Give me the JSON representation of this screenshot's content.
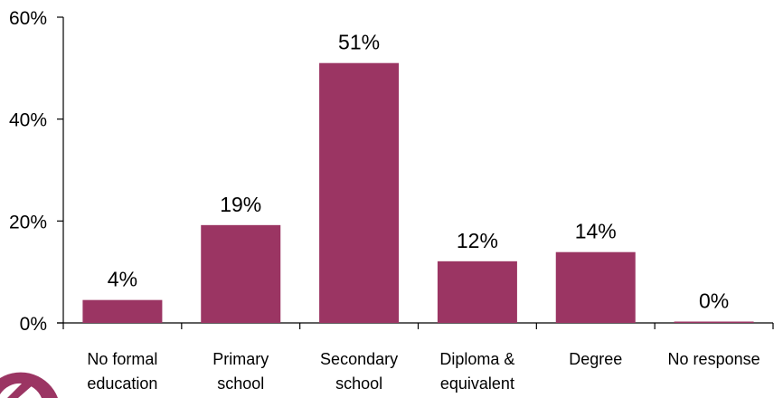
{
  "chart_data": {
    "type": "bar",
    "categories": [
      [
        "No formal",
        "education"
      ],
      [
        "Primary",
        "school"
      ],
      [
        "Secondary",
        "school"
      ],
      [
        "Diploma &",
        "equivalent"
      ],
      [
        "Degree"
      ],
      [
        "No response"
      ]
    ],
    "values": [
      4.5,
      19.2,
      51,
      12.1,
      13.9,
      0.2
    ],
    "data_labels": [
      "4%",
      "19%",
      "51%",
      "12%",
      "14%",
      "0%"
    ],
    "y_ticks": [
      {
        "value": 0,
        "label": "0%"
      },
      {
        "value": 20,
        "label": "20%"
      },
      {
        "value": 40,
        "label": "40%"
      },
      {
        "value": 60,
        "label": "60%"
      }
    ],
    "ylim": [
      0,
      60
    ],
    "grid": false,
    "legend": "none",
    "bar_color": "#9b3563",
    "logo_color": "#9b3563"
  }
}
